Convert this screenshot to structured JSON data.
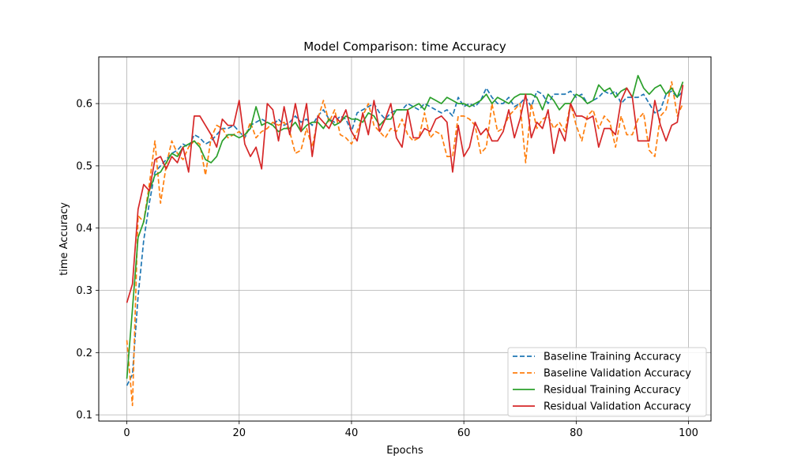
{
  "chart_data": {
    "type": "line",
    "title": "Model Comparison: time Accuracy",
    "xlabel": "Epochs",
    "ylabel": "time Accuracy",
    "xlim": [
      -5,
      104
    ],
    "ylim": [
      0.09,
      0.675
    ],
    "xticks": [
      0,
      20,
      40,
      60,
      80,
      100
    ],
    "yticks": [
      0.1,
      0.2,
      0.3,
      0.4,
      0.5,
      0.6
    ],
    "xtick_labels": [
      "0",
      "20",
      "40",
      "60",
      "80",
      "100"
    ],
    "ytick_labels": [
      "0.1",
      "0.2",
      "0.3",
      "0.4",
      "0.5",
      "0.6"
    ],
    "grid": true,
    "legend_position": "lower-right",
    "x": [
      0,
      1,
      2,
      3,
      4,
      5,
      6,
      7,
      8,
      9,
      10,
      11,
      12,
      13,
      14,
      15,
      16,
      17,
      18,
      19,
      20,
      21,
      22,
      23,
      24,
      25,
      26,
      27,
      28,
      29,
      30,
      31,
      32,
      33,
      34,
      35,
      36,
      37,
      38,
      39,
      40,
      41,
      42,
      43,
      44,
      45,
      46,
      47,
      48,
      49,
      50,
      51,
      52,
      53,
      54,
      55,
      56,
      57,
      58,
      59,
      60,
      61,
      62,
      63,
      64,
      65,
      66,
      67,
      68,
      69,
      70,
      71,
      72,
      73,
      74,
      75,
      76,
      77,
      78,
      79,
      80,
      81,
      82,
      83,
      84,
      85,
      86,
      87,
      88,
      89,
      90,
      91,
      92,
      93,
      94,
      95,
      96,
      97,
      98,
      99
    ],
    "series": [
      {
        "name": "Baseline Training Accuracy",
        "color": "#1f77b4",
        "dash": "dashed",
        "values": [
          0.147,
          0.165,
          0.29,
          0.38,
          0.44,
          0.49,
          0.5,
          0.51,
          0.52,
          0.525,
          0.535,
          0.53,
          0.55,
          0.545,
          0.535,
          0.54,
          0.55,
          0.56,
          0.56,
          0.565,
          0.555,
          0.545,
          0.565,
          0.57,
          0.575,
          0.57,
          0.565,
          0.575,
          0.565,
          0.57,
          0.58,
          0.57,
          0.575,
          0.565,
          0.58,
          0.59,
          0.575,
          0.57,
          0.58,
          0.575,
          0.555,
          0.585,
          0.59,
          0.595,
          0.6,
          0.585,
          0.575,
          0.585,
          0.59,
          0.59,
          0.6,
          0.595,
          0.59,
          0.6,
          0.595,
          0.59,
          0.585,
          0.59,
          0.58,
          0.61,
          0.595,
          0.6,
          0.595,
          0.605,
          0.625,
          0.61,
          0.6,
          0.6,
          0.61,
          0.595,
          0.6,
          0.61,
          0.595,
          0.62,
          0.615,
          0.6,
          0.615,
          0.615,
          0.615,
          0.62,
          0.61,
          0.615,
          0.6,
          0.605,
          0.61,
          0.62,
          0.615,
          0.62,
          0.6,
          0.61,
          0.61,
          0.61,
          0.615,
          0.6,
          0.585,
          0.59,
          0.615,
          0.62,
          0.61,
          0.62
        ]
      },
      {
        "name": "Baseline Validation Accuracy",
        "color": "#ff7f0e",
        "dash": "dashed",
        "values": [
          0.22,
          0.115,
          0.42,
          0.41,
          0.47,
          0.54,
          0.44,
          0.5,
          0.54,
          0.52,
          0.51,
          0.53,
          0.54,
          0.535,
          0.485,
          0.545,
          0.565,
          0.56,
          0.545,
          0.55,
          0.555,
          0.545,
          0.57,
          0.545,
          0.555,
          0.56,
          0.57,
          0.565,
          0.57,
          0.555,
          0.52,
          0.525,
          0.56,
          0.53,
          0.575,
          0.605,
          0.57,
          0.59,
          0.55,
          0.545,
          0.535,
          0.555,
          0.58,
          0.6,
          0.565,
          0.555,
          0.545,
          0.56,
          0.555,
          0.575,
          0.55,
          0.54,
          0.545,
          0.585,
          0.545,
          0.555,
          0.55,
          0.515,
          0.515,
          0.58,
          0.58,
          0.575,
          0.565,
          0.52,
          0.53,
          0.6,
          0.555,
          0.56,
          0.58,
          0.59,
          0.6,
          0.505,
          0.6,
          0.56,
          0.575,
          0.58,
          0.56,
          0.57,
          0.555,
          0.6,
          0.565,
          0.54,
          0.58,
          0.59,
          0.56,
          0.58,
          0.57,
          0.53,
          0.58,
          0.55,
          0.55,
          0.575,
          0.585,
          0.525,
          0.515,
          0.58,
          0.59,
          0.635,
          0.58,
          0.6
        ]
      },
      {
        "name": "Residual Training Accuracy",
        "color": "#2ca02c",
        "dash": "solid",
        "values": [
          0.158,
          0.27,
          0.385,
          0.41,
          0.46,
          0.485,
          0.49,
          0.505,
          0.52,
          0.515,
          0.53,
          0.535,
          0.54,
          0.53,
          0.51,
          0.505,
          0.515,
          0.54,
          0.55,
          0.55,
          0.545,
          0.55,
          0.56,
          0.595,
          0.565,
          0.57,
          0.565,
          0.555,
          0.56,
          0.56,
          0.57,
          0.555,
          0.565,
          0.57,
          0.57,
          0.56,
          0.575,
          0.565,
          0.57,
          0.58,
          0.575,
          0.575,
          0.57,
          0.585,
          0.58,
          0.565,
          0.575,
          0.575,
          0.59,
          0.59,
          0.59,
          0.595,
          0.6,
          0.59,
          0.61,
          0.605,
          0.6,
          0.61,
          0.605,
          0.6,
          0.6,
          0.595,
          0.6,
          0.605,
          0.615,
          0.6,
          0.61,
          0.605,
          0.6,
          0.61,
          0.615,
          0.615,
          0.615,
          0.61,
          0.59,
          0.615,
          0.605,
          0.59,
          0.6,
          0.6,
          0.615,
          0.61,
          0.6,
          0.605,
          0.63,
          0.62,
          0.625,
          0.61,
          0.62,
          0.625,
          0.61,
          0.645,
          0.625,
          0.615,
          0.625,
          0.63,
          0.615,
          0.625,
          0.61,
          0.635
        ]
      },
      {
        "name": "Residual Validation Accuracy",
        "color": "#d62728",
        "dash": "solid",
        "values": [
          0.28,
          0.31,
          0.43,
          0.47,
          0.46,
          0.51,
          0.515,
          0.495,
          0.515,
          0.505,
          0.53,
          0.49,
          0.58,
          0.58,
          0.565,
          0.55,
          0.53,
          0.575,
          0.565,
          0.565,
          0.605,
          0.535,
          0.515,
          0.53,
          0.495,
          0.6,
          0.59,
          0.54,
          0.595,
          0.55,
          0.6,
          0.555,
          0.6,
          0.515,
          0.58,
          0.57,
          0.56,
          0.58,
          0.57,
          0.59,
          0.555,
          0.54,
          0.585,
          0.55,
          0.605,
          0.555,
          0.575,
          0.6,
          0.545,
          0.53,
          0.59,
          0.545,
          0.545,
          0.56,
          0.555,
          0.575,
          0.58,
          0.57,
          0.49,
          0.565,
          0.515,
          0.53,
          0.57,
          0.55,
          0.56,
          0.54,
          0.54,
          0.555,
          0.59,
          0.545,
          0.575,
          0.615,
          0.545,
          0.57,
          0.56,
          0.59,
          0.52,
          0.56,
          0.54,
          0.6,
          0.58,
          0.58,
          0.575,
          0.58,
          0.53,
          0.56,
          0.56,
          0.55,
          0.605,
          0.625,
          0.61,
          0.54,
          0.54,
          0.54,
          0.605,
          0.565,
          0.54,
          0.565,
          0.57,
          0.63
        ]
      }
    ]
  }
}
